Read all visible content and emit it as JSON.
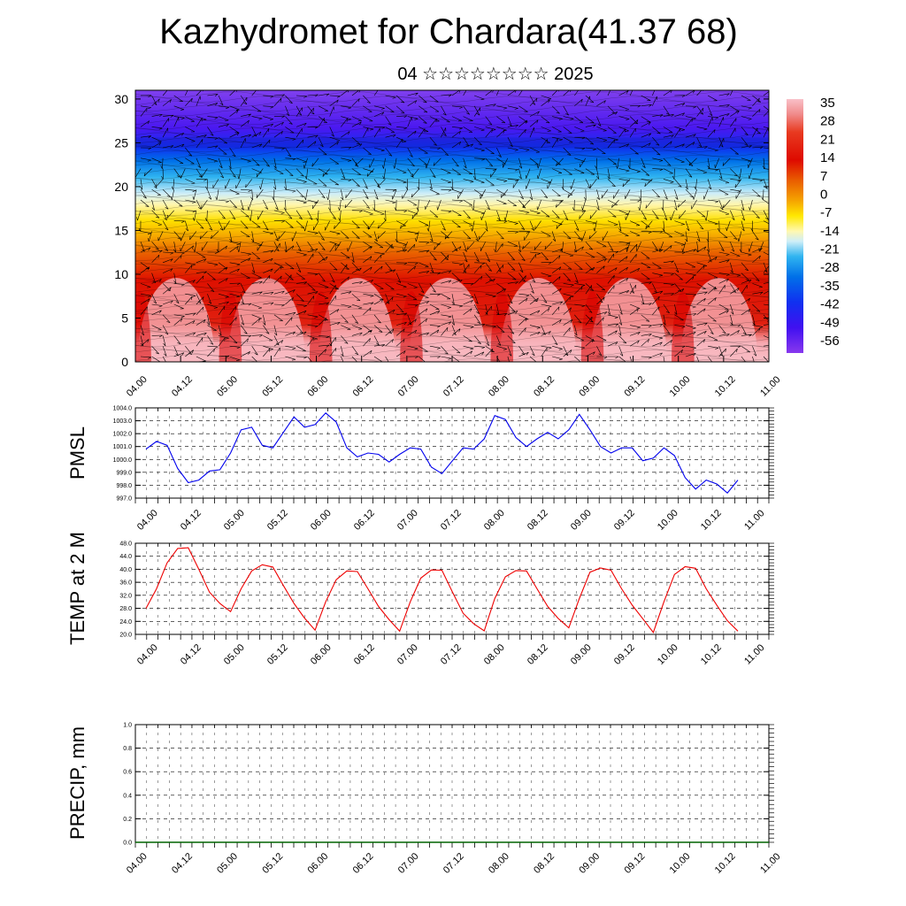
{
  "title": "Kazhydromet for Chardara(41.37 68)",
  "subtitle": "04 ☆☆☆☆☆☆☆☆ 2025",
  "colors": {
    "pmsl_line": "#0000ee",
    "temp_line": "#ee0000",
    "precip_line": "#006400"
  },
  "chart_data": [
    {
      "type": "heatmap",
      "name": "cross-section",
      "ylim": [
        0,
        31
      ],
      "y_ticks": [
        "0",
        "5",
        "10",
        "15",
        "20",
        "25",
        "30"
      ],
      "x_tick_labels": [
        "04.00",
        "04.12",
        "05.00",
        "05.12",
        "06.00",
        "06.12",
        "07.00",
        "07.12",
        "08.00",
        "08.12",
        "09.00",
        "09.12",
        "10.00",
        "10.12",
        "11.00"
      ],
      "colorbar_labels": [
        "35",
        "28",
        "21",
        "14",
        "7",
        "0",
        "-7",
        "-14",
        "-21",
        "-28",
        "-35",
        "-42",
        "-49",
        "-56"
      ],
      "colorbar_colors": [
        "#f9c0c8",
        "#f08a8a",
        "#e83a20",
        "#de0a00",
        "#e95d00",
        "#f5a400",
        "#ffe800",
        "#fff8b0",
        "#cfeef8",
        "#30b4f0",
        "#0070e8",
        "#1030f0",
        "#4010f0",
        "#8838ee"
      ]
    },
    {
      "type": "line",
      "name": "PMSL",
      "ylabel": "PMSL",
      "ylim": [
        997.0,
        1004.0
      ],
      "y_ticks": [
        "997.0",
        "998.0",
        "999.0",
        "1000.0",
        "1001.0",
        "1002.0",
        "1003.0",
        "1004.0"
      ],
      "x_tick_labels": [
        "04.00",
        "04.12",
        "05.00",
        "05.12",
        "06.00",
        "06.12",
        "07.00",
        "07.12",
        "08.00",
        "08.12",
        "09.00",
        "09.12",
        "10.00",
        "10.12",
        "11.00"
      ],
      "series": [
        {
          "values": [
            1000.8,
            1001.4,
            1001.1,
            999.3,
            998.2,
            998.4,
            999.1,
            999.2,
            1000.5,
            1002.3,
            1002.5,
            1001.1,
            1000.9,
            1002.1,
            1003.3,
            1002.5,
            1002.7,
            1003.6,
            1002.9,
            1000.9,
            1000.2,
            1000.5,
            1000.4,
            999.8,
            1000.4,
            1000.9,
            1000.8,
            999.4,
            998.9,
            999.9,
            1000.9,
            1000.8,
            1001.6,
            1003.4,
            1003.1,
            1001.7,
            1001.0,
            1001.6,
            1002.1,
            1001.6,
            1002.3,
            1003.5,
            1002.3,
            1001.0,
            1000.5,
            1000.9,
            1000.9,
            999.9,
            1000.1,
            1000.9,
            1000.3,
            998.6,
            997.7,
            998.4,
            998.1,
            997.4,
            998.4
          ]
        }
      ]
    },
    {
      "type": "line",
      "name": "TEMP at 2 M",
      "ylabel": "TEMP at 2 M",
      "ylim": [
        20.0,
        48.0
      ],
      "y_ticks": [
        "20.0",
        "24.0",
        "28.0",
        "32.0",
        "36.0",
        "40.0",
        "44.0",
        "48.0"
      ],
      "x_tick_labels": [
        "04.00",
        "04.12",
        "05.00",
        "05.12",
        "06.00",
        "06.12",
        "07.00",
        "07.12",
        "08.00",
        "08.12",
        "09.00",
        "09.12",
        "10.00",
        "10.12",
        "11.00"
      ],
      "series": [
        {
          "values": [
            28.0,
            34.0,
            42.0,
            46.4,
            46.6,
            40.0,
            33.0,
            29.5,
            27.0,
            34.0,
            39.5,
            41.4,
            40.7,
            35.0,
            29.5,
            25.0,
            21.3,
            30.0,
            36.8,
            39.5,
            39.3,
            34.0,
            28.6,
            24.5,
            21.0,
            30.0,
            37.3,
            39.8,
            39.7,
            33.0,
            26.5,
            23.3,
            21.1,
            31.0,
            37.7,
            39.6,
            39.5,
            34.0,
            28.6,
            24.9,
            22.0,
            31.0,
            39.1,
            40.4,
            39.7,
            34.0,
            29.0,
            24.8,
            20.6,
            30.0,
            38.4,
            40.8,
            40.3,
            34.0,
            29.0,
            24.2,
            21.0
          ]
        }
      ]
    },
    {
      "type": "line",
      "name": "PRECIP, mm",
      "ylabel": "PRECIP, mm",
      "ylim": [
        0.0,
        1.0
      ],
      "y_ticks": [
        "0.0",
        "0.2",
        "0.4",
        "0.6",
        "0.8",
        "1.0"
      ],
      "x_tick_labels": [
        "04.00",
        "04.12",
        "05.00",
        "05.12",
        "06.00",
        "06.12",
        "07.00",
        "07.12",
        "08.00",
        "08.12",
        "09.00",
        "09.12",
        "10.00",
        "10.12",
        "11.00"
      ],
      "series": [
        {
          "values": [
            0,
            0,
            0,
            0,
            0,
            0,
            0,
            0,
            0,
            0,
            0,
            0,
            0,
            0,
            0,
            0,
            0,
            0,
            0,
            0,
            0,
            0,
            0,
            0,
            0,
            0,
            0,
            0,
            0,
            0,
            0,
            0,
            0,
            0,
            0,
            0,
            0,
            0,
            0,
            0,
            0,
            0,
            0,
            0,
            0,
            0,
            0,
            0,
            0,
            0,
            0,
            0,
            0,
            0,
            0,
            0,
            0
          ]
        }
      ]
    }
  ]
}
